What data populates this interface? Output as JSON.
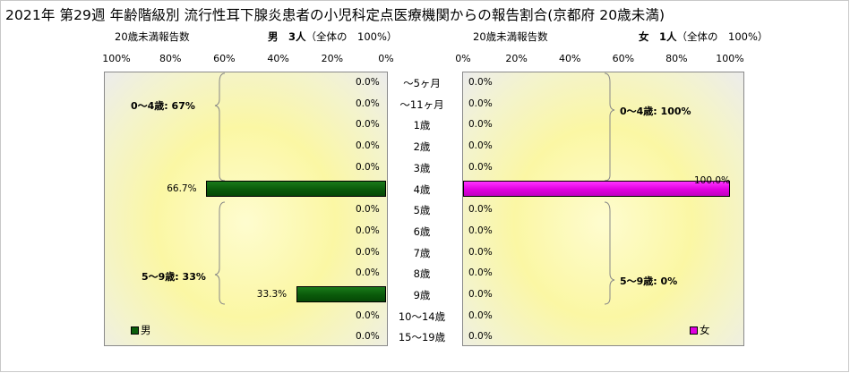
{
  "title": "2021年 第29週 年齢階級別 流行性耳下腺炎患者の小児科定点医療機関からの報告割合(京都府 20歳未満)",
  "left_panel": {
    "subtitle_left": "20歳未満報告数",
    "subtitle_right_bold": "男　3人",
    "subtitle_right_note": "（全体の　100%）",
    "ticks": [
      "100%",
      "80%",
      "60%",
      "40%",
      "20%",
      "0%"
    ],
    "groups": [
      {
        "label": "0～4歳: 67%"
      },
      {
        "label": "5～9歳: 33%"
      }
    ],
    "legend": "男"
  },
  "right_panel": {
    "subtitle_left": "20歳未満報告数",
    "subtitle_right_bold": "女　1人",
    "subtitle_right_note": "（全体の　100%）",
    "ticks": [
      "0%",
      "20%",
      "40%",
      "60%",
      "80%",
      "100%"
    ],
    "groups": [
      {
        "label": "0～4歳: 100%"
      },
      {
        "label": "5～9歳: 0%"
      }
    ],
    "legend": "女"
  },
  "colors": {
    "male": "#0b5e0b",
    "female": "#e000e0"
  },
  "chart_data": {
    "type": "bar",
    "orientation": "horizontal-butterfly",
    "title": "2021年 第29週 年齢階級別 流行性耳下腺炎患者の小児科定点医療機関からの報告割合(京都府 20歳未満)",
    "categories": [
      "～5ヶ月",
      "～11ヶ月",
      "1歳",
      "2歳",
      "3歳",
      "4歳",
      "5歳",
      "6歳",
      "7歳",
      "8歳",
      "9歳",
      "10～14歳",
      "15～19歳"
    ],
    "xlim": [
      0,
      100
    ],
    "series": [
      {
        "name": "男",
        "values": [
          0.0,
          0.0,
          0.0,
          0.0,
          0.0,
          66.7,
          0.0,
          0.0,
          0.0,
          0.0,
          33.3,
          0.0,
          0.0
        ],
        "labels": [
          "0.0%",
          "0.0%",
          "0.0%",
          "0.0%",
          "0.0%",
          "66.7%",
          "0.0%",
          "0.0%",
          "0.0%",
          "0.0%",
          "33.3%",
          "0.0%",
          "0.0%"
        ]
      },
      {
        "name": "女",
        "values": [
          0.0,
          0.0,
          0.0,
          0.0,
          0.0,
          100.0,
          0.0,
          0.0,
          0.0,
          0.0,
          0.0,
          0.0,
          0.0
        ],
        "labels": [
          "0.0%",
          "0.0%",
          "0.0%",
          "0.0%",
          "0.0%",
          "100.0%",
          "0.0%",
          "0.0%",
          "0.0%",
          "0.0%",
          "0.0%",
          "0.0%",
          "0.0%"
        ]
      }
    ],
    "grid": false,
    "legend": "bottom-left / bottom-right"
  }
}
